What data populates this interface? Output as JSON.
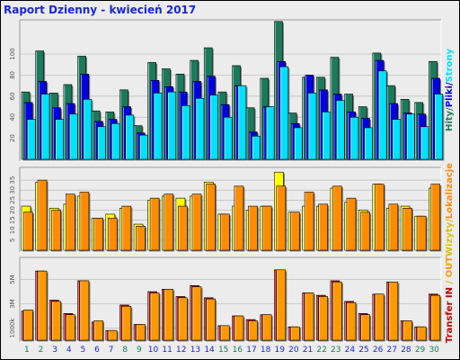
{
  "title": "Raport Dzienny -  kwiecień 2017",
  "chart_data": {
    "type": "bar",
    "title": "Raport Dzienny -  kwiecień 2017",
    "days": [
      "1",
      "2",
      "3",
      "4",
      "5",
      "6",
      "7",
      "8",
      "9",
      "10",
      "11",
      "12",
      "13",
      "14",
      "15",
      "16",
      "17",
      "18",
      "19",
      "20",
      "21",
      "22",
      "23",
      "24",
      "25",
      "26",
      "27",
      "28",
      "29",
      "30"
    ],
    "weekend_days": [
      "1",
      "2",
      "8",
      "9",
      "15",
      "16",
      "22",
      "23",
      "29",
      "30"
    ],
    "colors": {
      "hits": "#1a7a5c",
      "files": "#0000e0",
      "pages": "#00e0ff",
      "visits": "#ffff00",
      "sites": "#ff8c00",
      "kbytes": "#c00000",
      "kbytes_out": "#ff9900",
      "weekday_label": "#1a27d1",
      "weekend_label": "#1a7a5c"
    },
    "panels": [
      {
        "id": "top",
        "axis_label": "Hity/Pliki/Strony",
        "ticks": [
          "20",
          "40",
          "60",
          "80",
          "100"
        ],
        "ylim": [
          0,
          130
        ],
        "series": [
          {
            "name": "Hity",
            "values": [
              64,
              103,
              63,
              71,
              98,
              46,
              45,
              66,
              32,
              92,
              86,
              81,
              94,
              106,
              64,
              89,
              49,
              77,
              131,
              44,
              78,
              78,
              97,
              62,
              50,
              101,
              70,
              57,
              54,
              93
            ]
          },
          {
            "name": "Pliki",
            "values": [
              54,
              74,
              49,
              53,
              81,
              36,
              38,
              50,
              25,
              75,
              69,
              64,
              74,
              79,
              52,
              70,
              26,
              50,
              93,
              34,
              80,
              66,
              62,
              45,
              39,
              94,
              53,
              44,
              43,
              77
            ]
          },
          {
            "name": "Strony",
            "values": [
              38,
              62,
              38,
              43,
              57,
              31,
              34,
              42,
              23,
              63,
              64,
              51,
              58,
              61,
              40,
              70,
              22,
              50,
              88,
              30,
              63,
              45,
              56,
              40,
              30,
              84,
              38,
              43,
              31,
              62
            ]
          }
        ]
      },
      {
        "id": "middle",
        "axis_label": "Wizyty/Lokalizacje",
        "ticks": [
          "5",
          "10",
          "15",
          "20",
          "25",
          "30",
          "35"
        ],
        "ylim": [
          0,
          40
        ],
        "series": [
          {
            "name": "Wizyty",
            "values": [
              22,
              34,
              21,
              23,
              27,
              16,
              18,
              21,
              13,
              25,
              27,
              26,
              27,
              34,
              18,
              22,
              20,
              22,
              39,
              19,
              22,
              22,
              31,
              24,
              20,
              33,
              21,
              22,
              17,
              31
            ]
          },
          {
            "name": "Lokalizacje",
            "values": [
              19,
              35,
              20,
              28,
              29,
              16,
              16,
              22,
              12,
              26,
              28,
              22,
              28,
              33,
              18,
              32,
              22,
              22,
              32,
              19,
              29,
              23,
              32,
              26,
              19,
              33,
              23,
              21,
              17,
              33
            ]
          }
        ]
      },
      {
        "id": "bottom",
        "axis_label": "Transfer IN / OUT",
        "ticks": [
          "1000k",
          "3M",
          "5M"
        ],
        "ylim": [
          0,
          6.6
        ],
        "series": [
          {
            "name": "Transfer IN",
            "values": [
              2.4,
              5.7,
              3.3,
              2.2,
              4.9,
              1.5,
              0.8,
              2.9,
              1.3,
              4.0,
              4.2,
              3.6,
              4.5,
              3.5,
              1.2,
              2.0,
              1.7,
              2.1,
              5.8,
              1.1,
              3.9,
              3.7,
              4.9,
              3.2,
              2.2,
              3.8,
              4.8,
              1.6,
              1.1,
              3.8
            ]
          },
          {
            "name": "Transfer OUT",
            "values": [
              2.5,
              5.7,
              3.2,
              2.1,
              4.9,
              1.6,
              0.8,
              2.8,
              1.3,
              3.9,
              4.2,
              3.5,
              4.4,
              3.4,
              1.2,
              2.0,
              1.6,
              2.1,
              5.8,
              1.1,
              3.9,
              3.6,
              4.8,
              3.1,
              2.1,
              3.8,
              4.8,
              1.6,
              1.1,
              3.7
            ]
          }
        ]
      }
    ]
  }
}
